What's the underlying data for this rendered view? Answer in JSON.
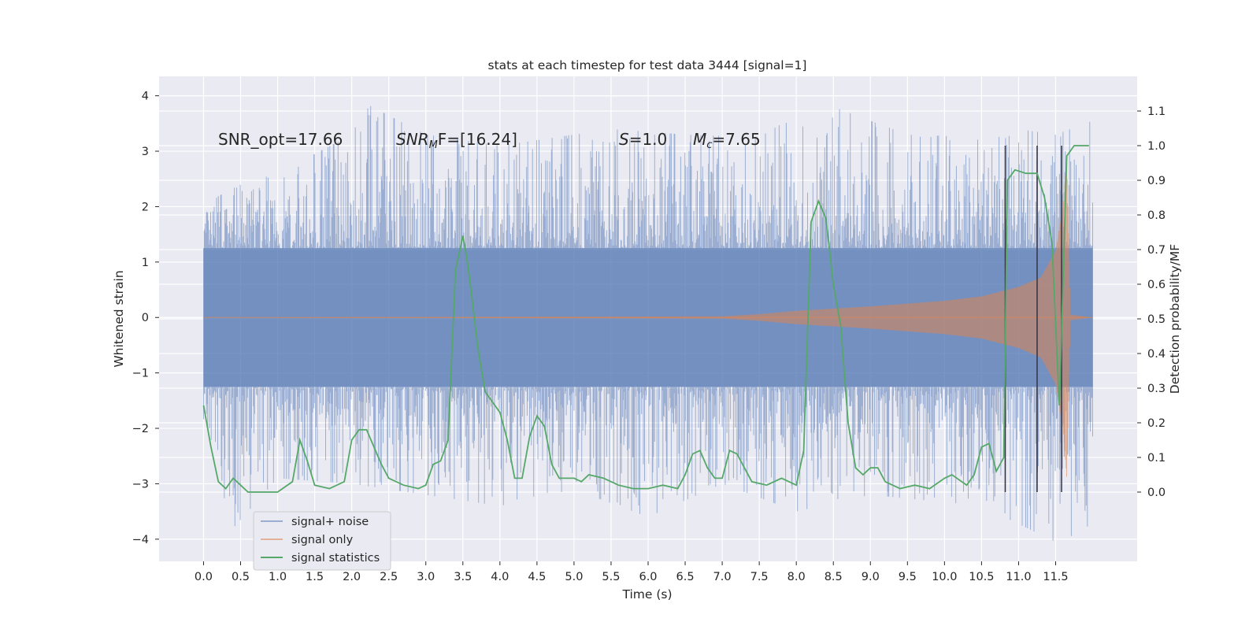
{
  "chart_data": {
    "type": "line",
    "title": "stats at each timestep for test data 3444 [signal=1]",
    "xlabel": "Time (s)",
    "ylabel": "Whitened strain",
    "ylabel_right": "Detection probability/MF",
    "xlim": [
      -0.6,
      12.6
    ],
    "ylim": [
      -4.4,
      4.35
    ],
    "ylim_right": [
      -0.2,
      1.2
    ],
    "x_ticks": [
      "0.0",
      "0.5",
      "1.0",
      "1.5",
      "2.0",
      "2.5",
      "3.0",
      "3.5",
      "4.0",
      "4.5",
      "5.0",
      "5.5",
      "6.0",
      "6.5",
      "7.0",
      "7.5",
      "8.0",
      "8.5",
      "9.0",
      "9.5",
      "10.0",
      "10.5",
      "11.0",
      "11.5"
    ],
    "y_ticks": [
      "4",
      "3",
      "2",
      "1",
      "0",
      "−1",
      "−2",
      "−3",
      "−4"
    ],
    "y_ticks_right": [
      "1.1",
      "1.0",
      "0.9",
      "0.8",
      "0.7",
      "0.6",
      "0.5",
      "0.4",
      "0.3",
      "0.2",
      "0.1",
      "0.0"
    ],
    "grid": true,
    "legend_placement": "lower-left",
    "colors": {
      "background": "#eaeaf2",
      "noise": "#4c72b0",
      "signal": "#dd8452",
      "statistics": "#55a868",
      "markers": "#333344"
    },
    "annotations": {
      "snr_opt": "SNR_opt=17.66",
      "snr_mf_name": "SNR",
      "snr_mf_sub": "M",
      "snr_mf_rest": "F=[16.24]",
      "s_name": "S",
      "s_rest": "=1.0",
      "mc_name": "M",
      "mc_sub": "c",
      "mc_rest": "=7.65"
    },
    "series": [
      {
        "name": "signal+ noise",
        "description_of_extent": "noise band",
        "x_range": [
          0.0,
          12.0
        ],
        "envelope_upper": [
          [
            0.0,
            2.05
          ],
          [
            0.5,
            2.4
          ],
          [
            1.0,
            2.6
          ],
          [
            2.0,
            3.3
          ],
          [
            2.2,
            3.85
          ],
          [
            3.0,
            3.3
          ],
          [
            4.0,
            3.1
          ],
          [
            5.5,
            3.4
          ],
          [
            6.5,
            3.3
          ],
          [
            7.5,
            3.25
          ],
          [
            8.3,
            3.9
          ],
          [
            9.5,
            3.3
          ],
          [
            10.5,
            3.25
          ],
          [
            11.0,
            3.4
          ],
          [
            11.5,
            3.3
          ],
          [
            12.0,
            3.55
          ]
        ],
        "envelope_lower": [
          [
            0.0,
            -2.0
          ],
          [
            0.4,
            -3.8
          ],
          [
            1.0,
            -2.9
          ],
          [
            2.0,
            -3.0
          ],
          [
            4.0,
            -3.4
          ],
          [
            5.0,
            -3.1
          ],
          [
            6.0,
            -3.6
          ],
          [
            7.0,
            -3.0
          ],
          [
            8.0,
            -3.5
          ],
          [
            9.0,
            -3.2
          ],
          [
            10.5,
            -3.4
          ],
          [
            11.5,
            -4.05
          ],
          [
            12.0,
            -3.8
          ]
        ]
      },
      {
        "name": "signal only",
        "chirp_amplitude": [
          [
            0.0,
            0.0
          ],
          [
            7.0,
            0.02
          ],
          [
            7.5,
            0.06
          ],
          [
            8.0,
            0.12
          ],
          [
            9.0,
            0.2
          ],
          [
            10.0,
            0.3
          ],
          [
            10.5,
            0.38
          ],
          [
            11.0,
            0.55
          ],
          [
            11.3,
            0.72
          ],
          [
            11.5,
            1.2
          ],
          [
            11.6,
            2.0
          ],
          [
            11.65,
            2.9
          ],
          [
            11.7,
            0.05
          ],
          [
            12.0,
            0.0
          ]
        ]
      },
      {
        "name": "signal statistics",
        "axis": "right",
        "points": [
          [
            0.0,
            0.25
          ],
          [
            0.1,
            0.13
          ],
          [
            0.2,
            0.03
          ],
          [
            0.3,
            0.01
          ],
          [
            0.4,
            0.04
          ],
          [
            0.5,
            0.02
          ],
          [
            0.6,
            0.0
          ],
          [
            0.8,
            0.0
          ],
          [
            1.0,
            0.0
          ],
          [
            1.2,
            0.03
          ],
          [
            1.3,
            0.15
          ],
          [
            1.4,
            0.09
          ],
          [
            1.5,
            0.02
          ],
          [
            1.7,
            0.01
          ],
          [
            1.9,
            0.03
          ],
          [
            2.0,
            0.15
          ],
          [
            2.1,
            0.18
          ],
          [
            2.2,
            0.18
          ],
          [
            2.4,
            0.08
          ],
          [
            2.5,
            0.04
          ],
          [
            2.7,
            0.02
          ],
          [
            2.9,
            0.01
          ],
          [
            3.0,
            0.02
          ],
          [
            3.1,
            0.08
          ],
          [
            3.2,
            0.09
          ],
          [
            3.3,
            0.15
          ],
          [
            3.4,
            0.64
          ],
          [
            3.5,
            0.74
          ],
          [
            3.55,
            0.68
          ],
          [
            3.6,
            0.6
          ],
          [
            3.7,
            0.42
          ],
          [
            3.8,
            0.29
          ],
          [
            3.9,
            0.26
          ],
          [
            4.0,
            0.23
          ],
          [
            4.1,
            0.15
          ],
          [
            4.2,
            0.04
          ],
          [
            4.3,
            0.04
          ],
          [
            4.4,
            0.16
          ],
          [
            4.5,
            0.22
          ],
          [
            4.6,
            0.19
          ],
          [
            4.7,
            0.08
          ],
          [
            4.8,
            0.04
          ],
          [
            5.0,
            0.04
          ],
          [
            5.1,
            0.03
          ],
          [
            5.2,
            0.05
          ],
          [
            5.4,
            0.04
          ],
          [
            5.6,
            0.02
          ],
          [
            5.8,
            0.01
          ],
          [
            6.0,
            0.01
          ],
          [
            6.2,
            0.02
          ],
          [
            6.4,
            0.01
          ],
          [
            6.5,
            0.05
          ],
          [
            6.6,
            0.11
          ],
          [
            6.7,
            0.12
          ],
          [
            6.8,
            0.07
          ],
          [
            6.9,
            0.04
          ],
          [
            7.0,
            0.04
          ],
          [
            7.1,
            0.12
          ],
          [
            7.2,
            0.11
          ],
          [
            7.4,
            0.03
          ],
          [
            7.6,
            0.02
          ],
          [
            7.8,
            0.04
          ],
          [
            8.0,
            0.02
          ],
          [
            8.1,
            0.12
          ],
          [
            8.2,
            0.78
          ],
          [
            8.3,
            0.84
          ],
          [
            8.4,
            0.79
          ],
          [
            8.5,
            0.6
          ],
          [
            8.6,
            0.48
          ],
          [
            8.7,
            0.2
          ],
          [
            8.8,
            0.07
          ],
          [
            8.9,
            0.05
          ],
          [
            9.0,
            0.07
          ],
          [
            9.1,
            0.07
          ],
          [
            9.2,
            0.03
          ],
          [
            9.4,
            0.01
          ],
          [
            9.6,
            0.02
          ],
          [
            9.8,
            0.01
          ],
          [
            10.0,
            0.04
          ],
          [
            10.1,
            0.05
          ],
          [
            10.3,
            0.02
          ],
          [
            10.4,
            0.05
          ],
          [
            10.5,
            0.13
          ],
          [
            10.6,
            0.14
          ],
          [
            10.7,
            0.06
          ],
          [
            10.8,
            0.1
          ],
          [
            10.85,
            0.9
          ],
          [
            10.95,
            0.93
          ],
          [
            11.1,
            0.92
          ],
          [
            11.25,
            0.92
          ],
          [
            11.35,
            0.85
          ],
          [
            11.45,
            0.72
          ],
          [
            11.55,
            0.25
          ],
          [
            11.65,
            0.97
          ],
          [
            11.75,
            1.0
          ],
          [
            11.9,
            1.0
          ],
          [
            11.95,
            1.0
          ]
        ]
      }
    ],
    "vertical_markers_x": [
      10.82,
      11.25,
      11.58
    ]
  }
}
